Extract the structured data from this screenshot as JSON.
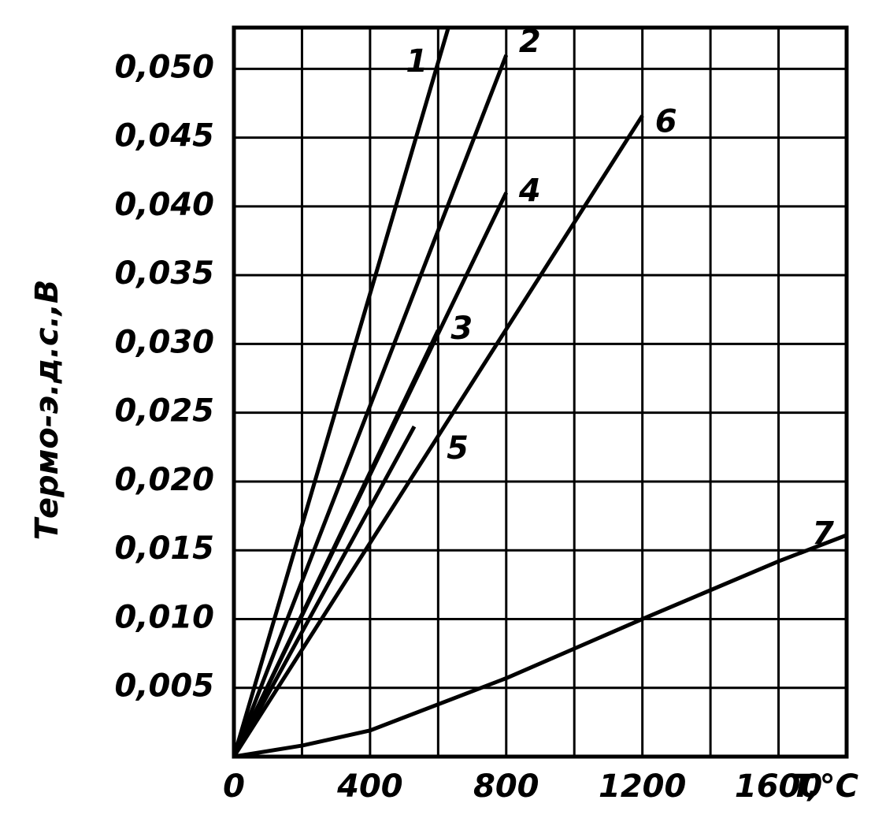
{
  "chart_data": {
    "type": "line",
    "xlabel": "T,°C",
    "ylabel": "Термо-э.д.с.,В",
    "xlim": [
      0,
      1800
    ],
    "ylim": [
      0,
      0.053
    ],
    "xticks": [
      0,
      400,
      800,
      1200,
      1600
    ],
    "xminor": [
      200,
      600,
      1000,
      1400,
      1800
    ],
    "yticks": [
      {
        "value": 0.005,
        "label": "0,005"
      },
      {
        "value": 0.01,
        "label": "0,010"
      },
      {
        "value": 0.015,
        "label": "0,015"
      },
      {
        "value": 0.02,
        "label": "0,020"
      },
      {
        "value": 0.025,
        "label": "0,025"
      },
      {
        "value": 0.03,
        "label": "0,030"
      },
      {
        "value": 0.035,
        "label": "0,035"
      },
      {
        "value": 0.04,
        "label": "0,040"
      },
      {
        "value": 0.045,
        "label": "0,045"
      },
      {
        "value": 0.05,
        "label": "0,050"
      }
    ],
    "grid": true,
    "series": [
      {
        "name": "1",
        "color": "#000000",
        "x": [
          0,
          630
        ],
        "values": [
          0,
          0.053
        ]
      },
      {
        "name": "2",
        "color": "#000000",
        "x": [
          0,
          800
        ],
        "values": [
          0,
          0.051
        ]
      },
      {
        "name": "3",
        "color": "#000000",
        "x": [
          0,
          600
        ],
        "values": [
          0,
          0.031
        ]
      },
      {
        "name": "4",
        "color": "#000000",
        "x": [
          0,
          800
        ],
        "values": [
          0,
          0.041
        ]
      },
      {
        "name": "5",
        "color": "#000000",
        "x": [
          0,
          530
        ],
        "values": [
          0,
          0.024
        ]
      },
      {
        "name": "6",
        "color": "#000000",
        "x": [
          0,
          1200
        ],
        "values": [
          0,
          0.0466
        ]
      },
      {
        "name": "7",
        "color": "#000000",
        "x": [
          0,
          200,
          400,
          800,
          1200,
          1600,
          1800
        ],
        "values": [
          0,
          0.0008,
          0.0019,
          0.0057,
          0.01,
          0.0142,
          0.0161
        ]
      }
    ]
  }
}
